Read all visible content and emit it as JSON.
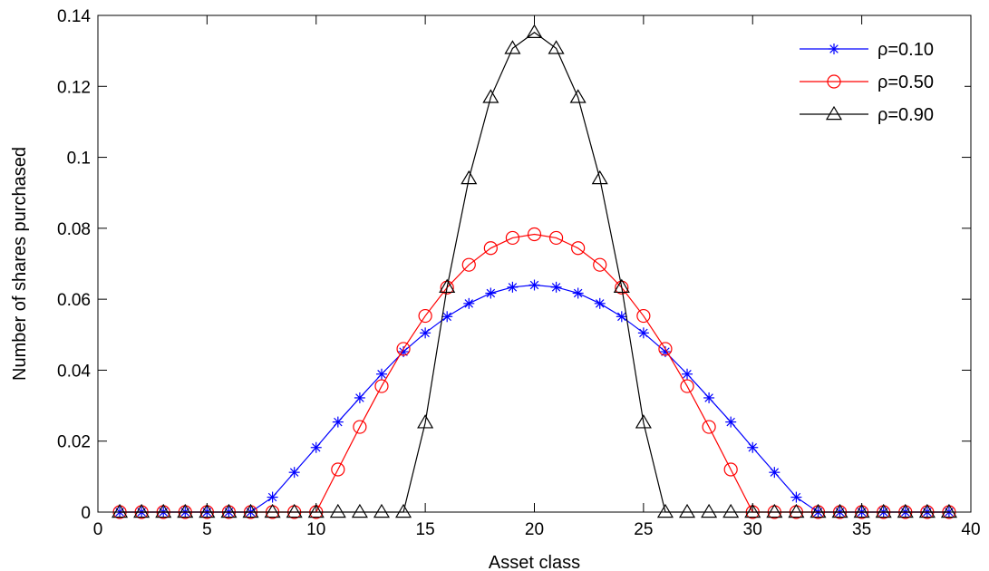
{
  "chart_data": {
    "type": "line",
    "title": "",
    "xlabel": "Asset class",
    "ylabel": "Number of shares purchased",
    "xlim": [
      0,
      40
    ],
    "ylim": [
      0,
      0.14
    ],
    "xticks": [
      0,
      5,
      10,
      15,
      20,
      25,
      30,
      35,
      40
    ],
    "xtick_labels": [
      "0",
      "5",
      "10",
      "15",
      "20",
      "25",
      "30",
      "35",
      "40"
    ],
    "yticks": [
      0,
      0.02,
      0.04,
      0.06,
      0.08,
      0.1,
      0.12,
      0.14
    ],
    "ytick_labels": [
      "0",
      "0.02",
      "0.04",
      "0.06",
      "0.08",
      "0.1",
      "0.12",
      "0.14"
    ],
    "grid": false,
    "legend_position": "top-right",
    "x": [
      1,
      2,
      3,
      4,
      5,
      6,
      7,
      8,
      9,
      10,
      11,
      12,
      13,
      14,
      15,
      16,
      17,
      18,
      19,
      20,
      21,
      22,
      23,
      24,
      25,
      26,
      27,
      28,
      29,
      30,
      31,
      32,
      33,
      34,
      35,
      36,
      37,
      38,
      39
    ],
    "series": [
      {
        "name": "ρ=0.10",
        "color": "#0000ff",
        "marker": "asterisk",
        "values": [
          0,
          0,
          0,
          0,
          0,
          0,
          0,
          0.0042,
          0.0112,
          0.0182,
          0.0254,
          0.0322,
          0.0389,
          0.0452,
          0.0505,
          0.0551,
          0.0588,
          0.0617,
          0.0634,
          0.064,
          0.0634,
          0.0617,
          0.0588,
          0.0551,
          0.0505,
          0.0452,
          0.0389,
          0.0322,
          0.0254,
          0.0182,
          0.0112,
          0.0042,
          0,
          0,
          0,
          0,
          0,
          0,
          0
        ]
      },
      {
        "name": "ρ=0.50",
        "color": "#ff0000",
        "marker": "circle",
        "values": [
          0,
          0,
          0,
          0,
          0,
          0,
          0,
          0,
          0,
          0,
          0.012,
          0.024,
          0.0355,
          0.046,
          0.0553,
          0.0633,
          0.0697,
          0.0744,
          0.0773,
          0.0783,
          0.0773,
          0.0744,
          0.0697,
          0.0633,
          0.0553,
          0.046,
          0.0355,
          0.024,
          0.012,
          0,
          0,
          0,
          0,
          0,
          0,
          0,
          0,
          0,
          0
        ]
      },
      {
        "name": "ρ=0.90",
        "color": "#000000",
        "marker": "triangle",
        "values": [
          0,
          0,
          0,
          0,
          0,
          0,
          0,
          0,
          0,
          0,
          0,
          0,
          0,
          0,
          0.0252,
          0.0634,
          0.094,
          0.1169,
          0.1307,
          0.1352,
          0.1307,
          0.1169,
          0.094,
          0.0634,
          0.0252,
          0,
          0,
          0,
          0,
          0,
          0,
          0,
          0,
          0,
          0,
          0,
          0,
          0,
          0
        ]
      }
    ]
  }
}
